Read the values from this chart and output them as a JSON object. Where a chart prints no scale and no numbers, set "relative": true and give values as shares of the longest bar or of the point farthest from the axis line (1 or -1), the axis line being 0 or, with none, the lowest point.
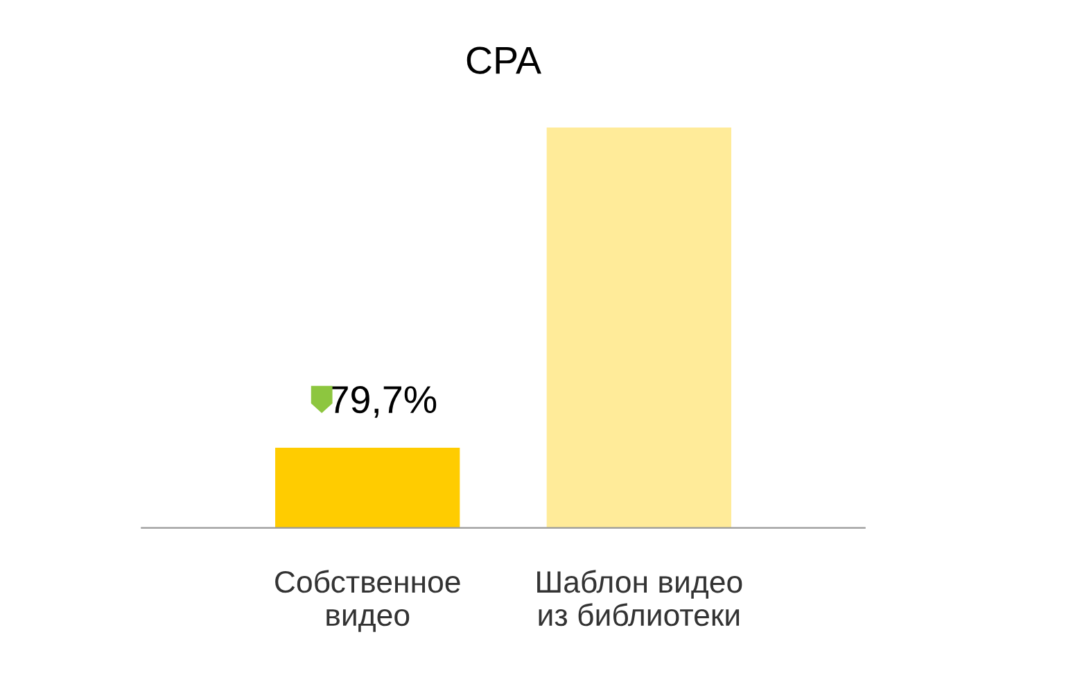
{
  "chart_data": {
    "type": "bar",
    "title": "CPA",
    "relative": true,
    "categories": [
      "Собственное\nвидео",
      "Шаблон видео\nиз библиотеки"
    ],
    "values": [
      0.2,
      1
    ],
    "colors": [
      "#ffcc00",
      "#ffeb99"
    ],
    "annotations": [
      {
        "text": "79,7%",
        "x": "Собственное\nвидео",
        "y": 0.2
      }
    ],
    "grid": false,
    "legend": false
  }
}
